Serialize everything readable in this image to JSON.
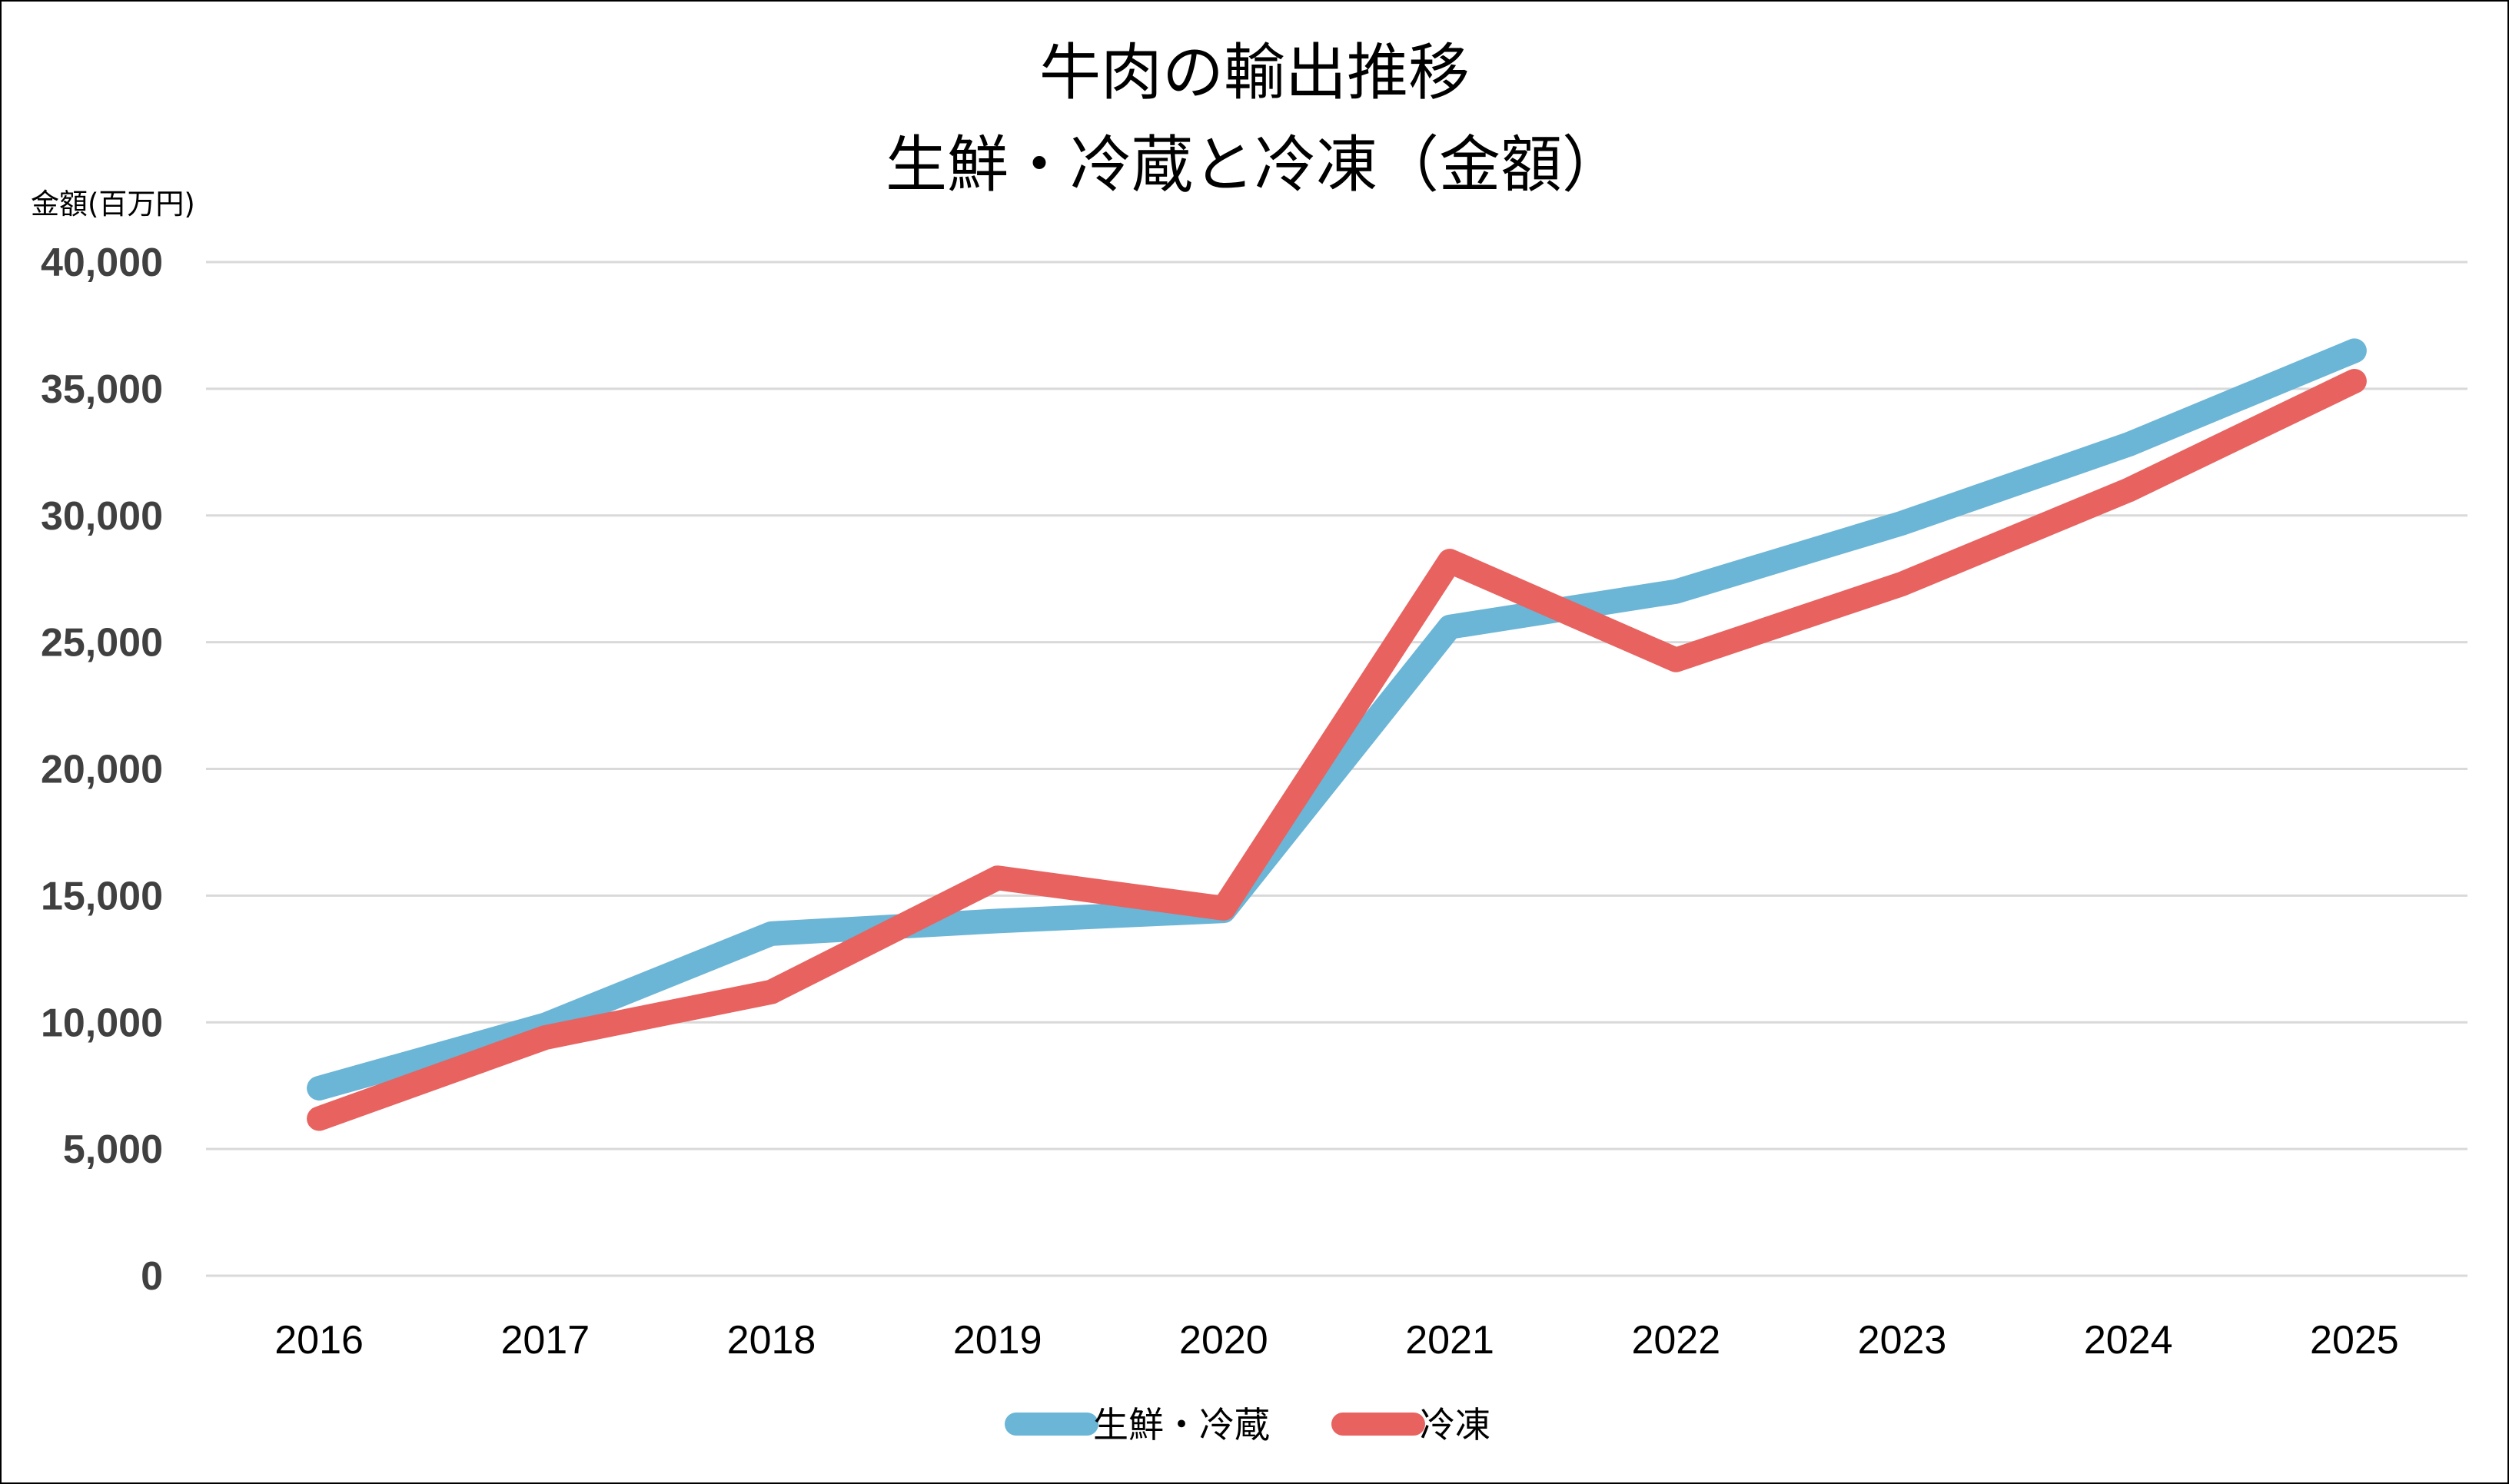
{
  "chart_data": {
    "type": "line",
    "title_lines": [
      "牛肉の輸出推移",
      "生鮮・冷蔵と冷凍（金額）"
    ],
    "ylabel": "金額(百万円)",
    "xlabel": "",
    "categories": [
      "2016",
      "2017",
      "2018",
      "2019",
      "2020",
      "2021",
      "2022",
      "2023",
      "2024",
      "2025"
    ],
    "y_ticks": [
      "0",
      "5,000",
      "10,000",
      "15,000",
      "20,000",
      "25,000",
      "30,000",
      "35,000",
      "40,000"
    ],
    "ylim": [
      0,
      40000
    ],
    "grid": true,
    "legend_position": "bottom",
    "series": [
      {
        "name": "生鮮・冷蔵",
        "color": "#6bb5d6",
        "values": [
          7400,
          9900,
          13500,
          14000,
          14400,
          25600,
          27000,
          29700,
          32800,
          36500
        ]
      },
      {
        "name": "冷凍",
        "color": "#e8625f",
        "values": [
          6200,
          9400,
          11200,
          15700,
          14500,
          28200,
          24300,
          27300,
          31000,
          35300
        ]
      }
    ]
  }
}
